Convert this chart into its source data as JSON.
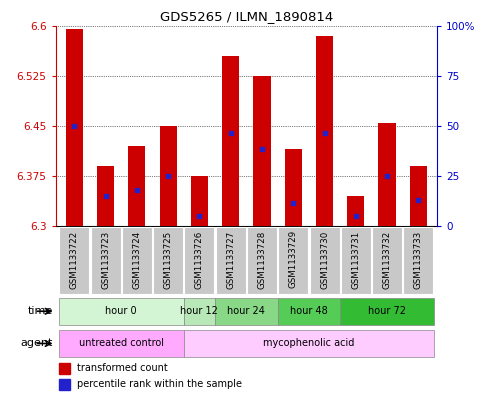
{
  "title": "GDS5265 / ILMN_1890814",
  "samples": [
    "GSM1133722",
    "GSM1133723",
    "GSM1133724",
    "GSM1133725",
    "GSM1133726",
    "GSM1133727",
    "GSM1133728",
    "GSM1133729",
    "GSM1133730",
    "GSM1133731",
    "GSM1133732",
    "GSM1133733"
  ],
  "bar_tops": [
    6.595,
    6.39,
    6.42,
    6.45,
    6.375,
    6.555,
    6.525,
    6.415,
    6.585,
    6.345,
    6.455,
    6.39
  ],
  "bar_bottoms": [
    6.3,
    6.3,
    6.3,
    6.3,
    6.3,
    6.3,
    6.3,
    6.3,
    6.3,
    6.3,
    6.3,
    6.3
  ],
  "percentile_values": [
    6.45,
    6.345,
    6.355,
    6.375,
    6.315,
    6.44,
    6.415,
    6.335,
    6.44,
    6.315,
    6.375,
    6.34
  ],
  "ylim": [
    6.3,
    6.6
  ],
  "yticks": [
    6.3,
    6.375,
    6.45,
    6.525,
    6.6
  ],
  "right_yticks": [
    0,
    25,
    50,
    75,
    100
  ],
  "bar_color": "#cc0000",
  "dot_color": "#2222cc",
  "bg_color": "#ffffff",
  "tick_label_color_left": "#cc0000",
  "tick_label_color_right": "#0000cc",
  "time_groups": [
    {
      "label": "hour 0",
      "start": 0,
      "end": 4,
      "color": "#d4f5d4"
    },
    {
      "label": "hour 12",
      "start": 4,
      "end": 5,
      "color": "#b8e8b8"
    },
    {
      "label": "hour 24",
      "start": 5,
      "end": 7,
      "color": "#88d888"
    },
    {
      "label": "hour 48",
      "start": 7,
      "end": 9,
      "color": "#55cc55"
    },
    {
      "label": "hour 72",
      "start": 9,
      "end": 12,
      "color": "#33bb33"
    }
  ],
  "agent_groups": [
    {
      "label": "untreated control",
      "start": 0,
      "end": 4,
      "color": "#ffaaff"
    },
    {
      "label": "mycophenolic acid",
      "start": 4,
      "end": 12,
      "color": "#ffccff"
    }
  ],
  "sample_bg_color": "#c8c8c8",
  "bar_width": 0.55
}
